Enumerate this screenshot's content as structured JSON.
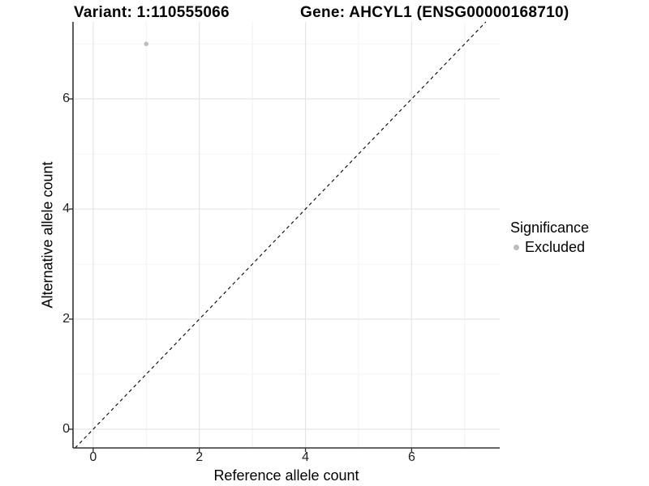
{
  "header": {
    "variant_title": "Variant: 1:110555066",
    "gene_title": "Gene: AHCYL1 (ENSG00000168710)"
  },
  "chart_data": {
    "type": "scatter",
    "xlabel": "Reference allele count",
    "ylabel": "Alternative allele count",
    "xlim": [
      -0.38,
      7.66
    ],
    "ylim": [
      -0.34,
      7.4
    ],
    "x_major_ticks": [
      0,
      2,
      4,
      6
    ],
    "y_major_ticks": [
      0,
      2,
      4,
      6
    ],
    "x_minor_gridlines": [
      1,
      3,
      5,
      7
    ],
    "y_minor_gridlines": [
      1,
      3,
      5,
      7
    ],
    "grid": true,
    "series": [
      {
        "name": "Excluded",
        "color": "#bdbdbd",
        "points": [
          {
            "x": 1,
            "y": 7
          }
        ]
      }
    ],
    "reference_line": {
      "slope": 1,
      "intercept": 0,
      "style": "dashed",
      "color": "#000000"
    },
    "legend": {
      "title": "Significance",
      "position": "right",
      "entries": [
        {
          "label": "Excluded",
          "color": "#bdbdbd"
        }
      ]
    }
  },
  "colors": {
    "background": "#ffffff",
    "grid_major": "#e5e5e5",
    "grid_minor": "#f0f0f0",
    "axis_line": "#333333",
    "tick_mark": "#333333",
    "point": "#bdbdbd",
    "reference_line": "#000000"
  }
}
